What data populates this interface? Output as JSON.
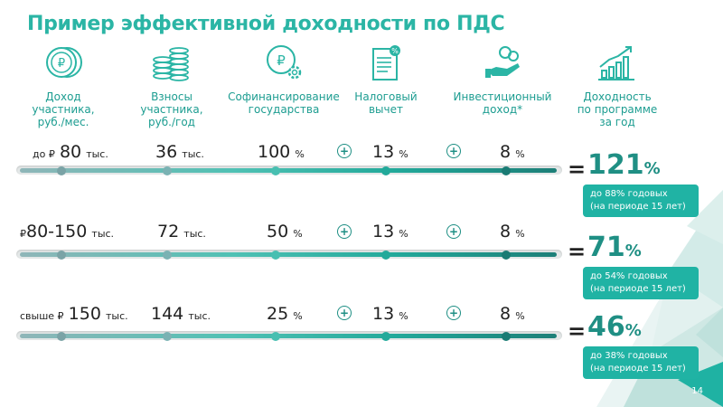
{
  "title": "Пример эффективной доходности по ПДС",
  "columns": [
    {
      "label": "Доход участника, руб./мес.",
      "lines": [
        "Доход",
        "участника,",
        "руб./мес."
      ],
      "icon": "ruble-coin-icon"
    },
    {
      "label": "Взносы участника, руб./год",
      "lines": [
        "Взносы",
        "участника,",
        "руб./год"
      ],
      "icon": "coin-stacks-icon"
    },
    {
      "label": "Софинансирование государства",
      "lines": [
        "Софинансирование",
        "государства"
      ],
      "icon": "ruble-gear-icon"
    },
    {
      "label": "Налоговый вычет",
      "lines": [
        "Налоговый",
        "вычет"
      ],
      "icon": "tax-document-icon"
    },
    {
      "label": "Инвестиционный доход*",
      "lines": [
        "Инвестиционный",
        "доход*"
      ],
      "icon": "hand-coins-icon"
    },
    {
      "label": "Доходность по программе за год",
      "lines": [
        "Доходность",
        "по программе",
        "за год"
      ],
      "icon": "growth-chart-icon"
    }
  ],
  "rows": [
    {
      "income_prefix": "до ₽",
      "income_value": "80",
      "income_unit": "тыс.",
      "contrib_value": "36",
      "contrib_unit": "тыс.",
      "cofin_value": "100",
      "cofin_unit": "%",
      "tax_value": "13",
      "tax_unit": "%",
      "invest_value": "8",
      "invest_unit": "%",
      "result_value": "121",
      "result_unit": "%",
      "badge_line1": "до 88% годовых",
      "badge_line2": "(на периоде 15 лет)"
    },
    {
      "income_prefix": "₽",
      "income_value": "80-150",
      "income_unit": "тыс.",
      "contrib_value": "72",
      "contrib_unit": "тыс.",
      "cofin_value": "50",
      "cofin_unit": "%",
      "tax_value": "13",
      "tax_unit": "%",
      "invest_value": "8",
      "invest_unit": "%",
      "result_value": "71",
      "result_unit": "%",
      "badge_line1": "до 54% годовых",
      "badge_line2": "(на периоде 15 лет)"
    },
    {
      "income_prefix": "свыше ₽",
      "income_value": "150",
      "income_unit": "тыс.",
      "contrib_value": "144",
      "contrib_unit": "тыс.",
      "cofin_value": "25",
      "cofin_unit": "%",
      "tax_value": "13",
      "tax_unit": "%",
      "invest_value": "8",
      "invest_unit": "%",
      "result_value": "46",
      "result_unit": "%",
      "badge_line1": "до 38% годовых",
      "badge_line2": "(на периоде 15 лет)"
    }
  ],
  "operators": {
    "plus": "+",
    "equals": "="
  },
  "page_number": "14",
  "colors": {
    "accent": "#2bb5a5",
    "dark_teal": "#1f8f84",
    "badge": "#20b3a4",
    "dot_grey": "#7aa3a6"
  }
}
